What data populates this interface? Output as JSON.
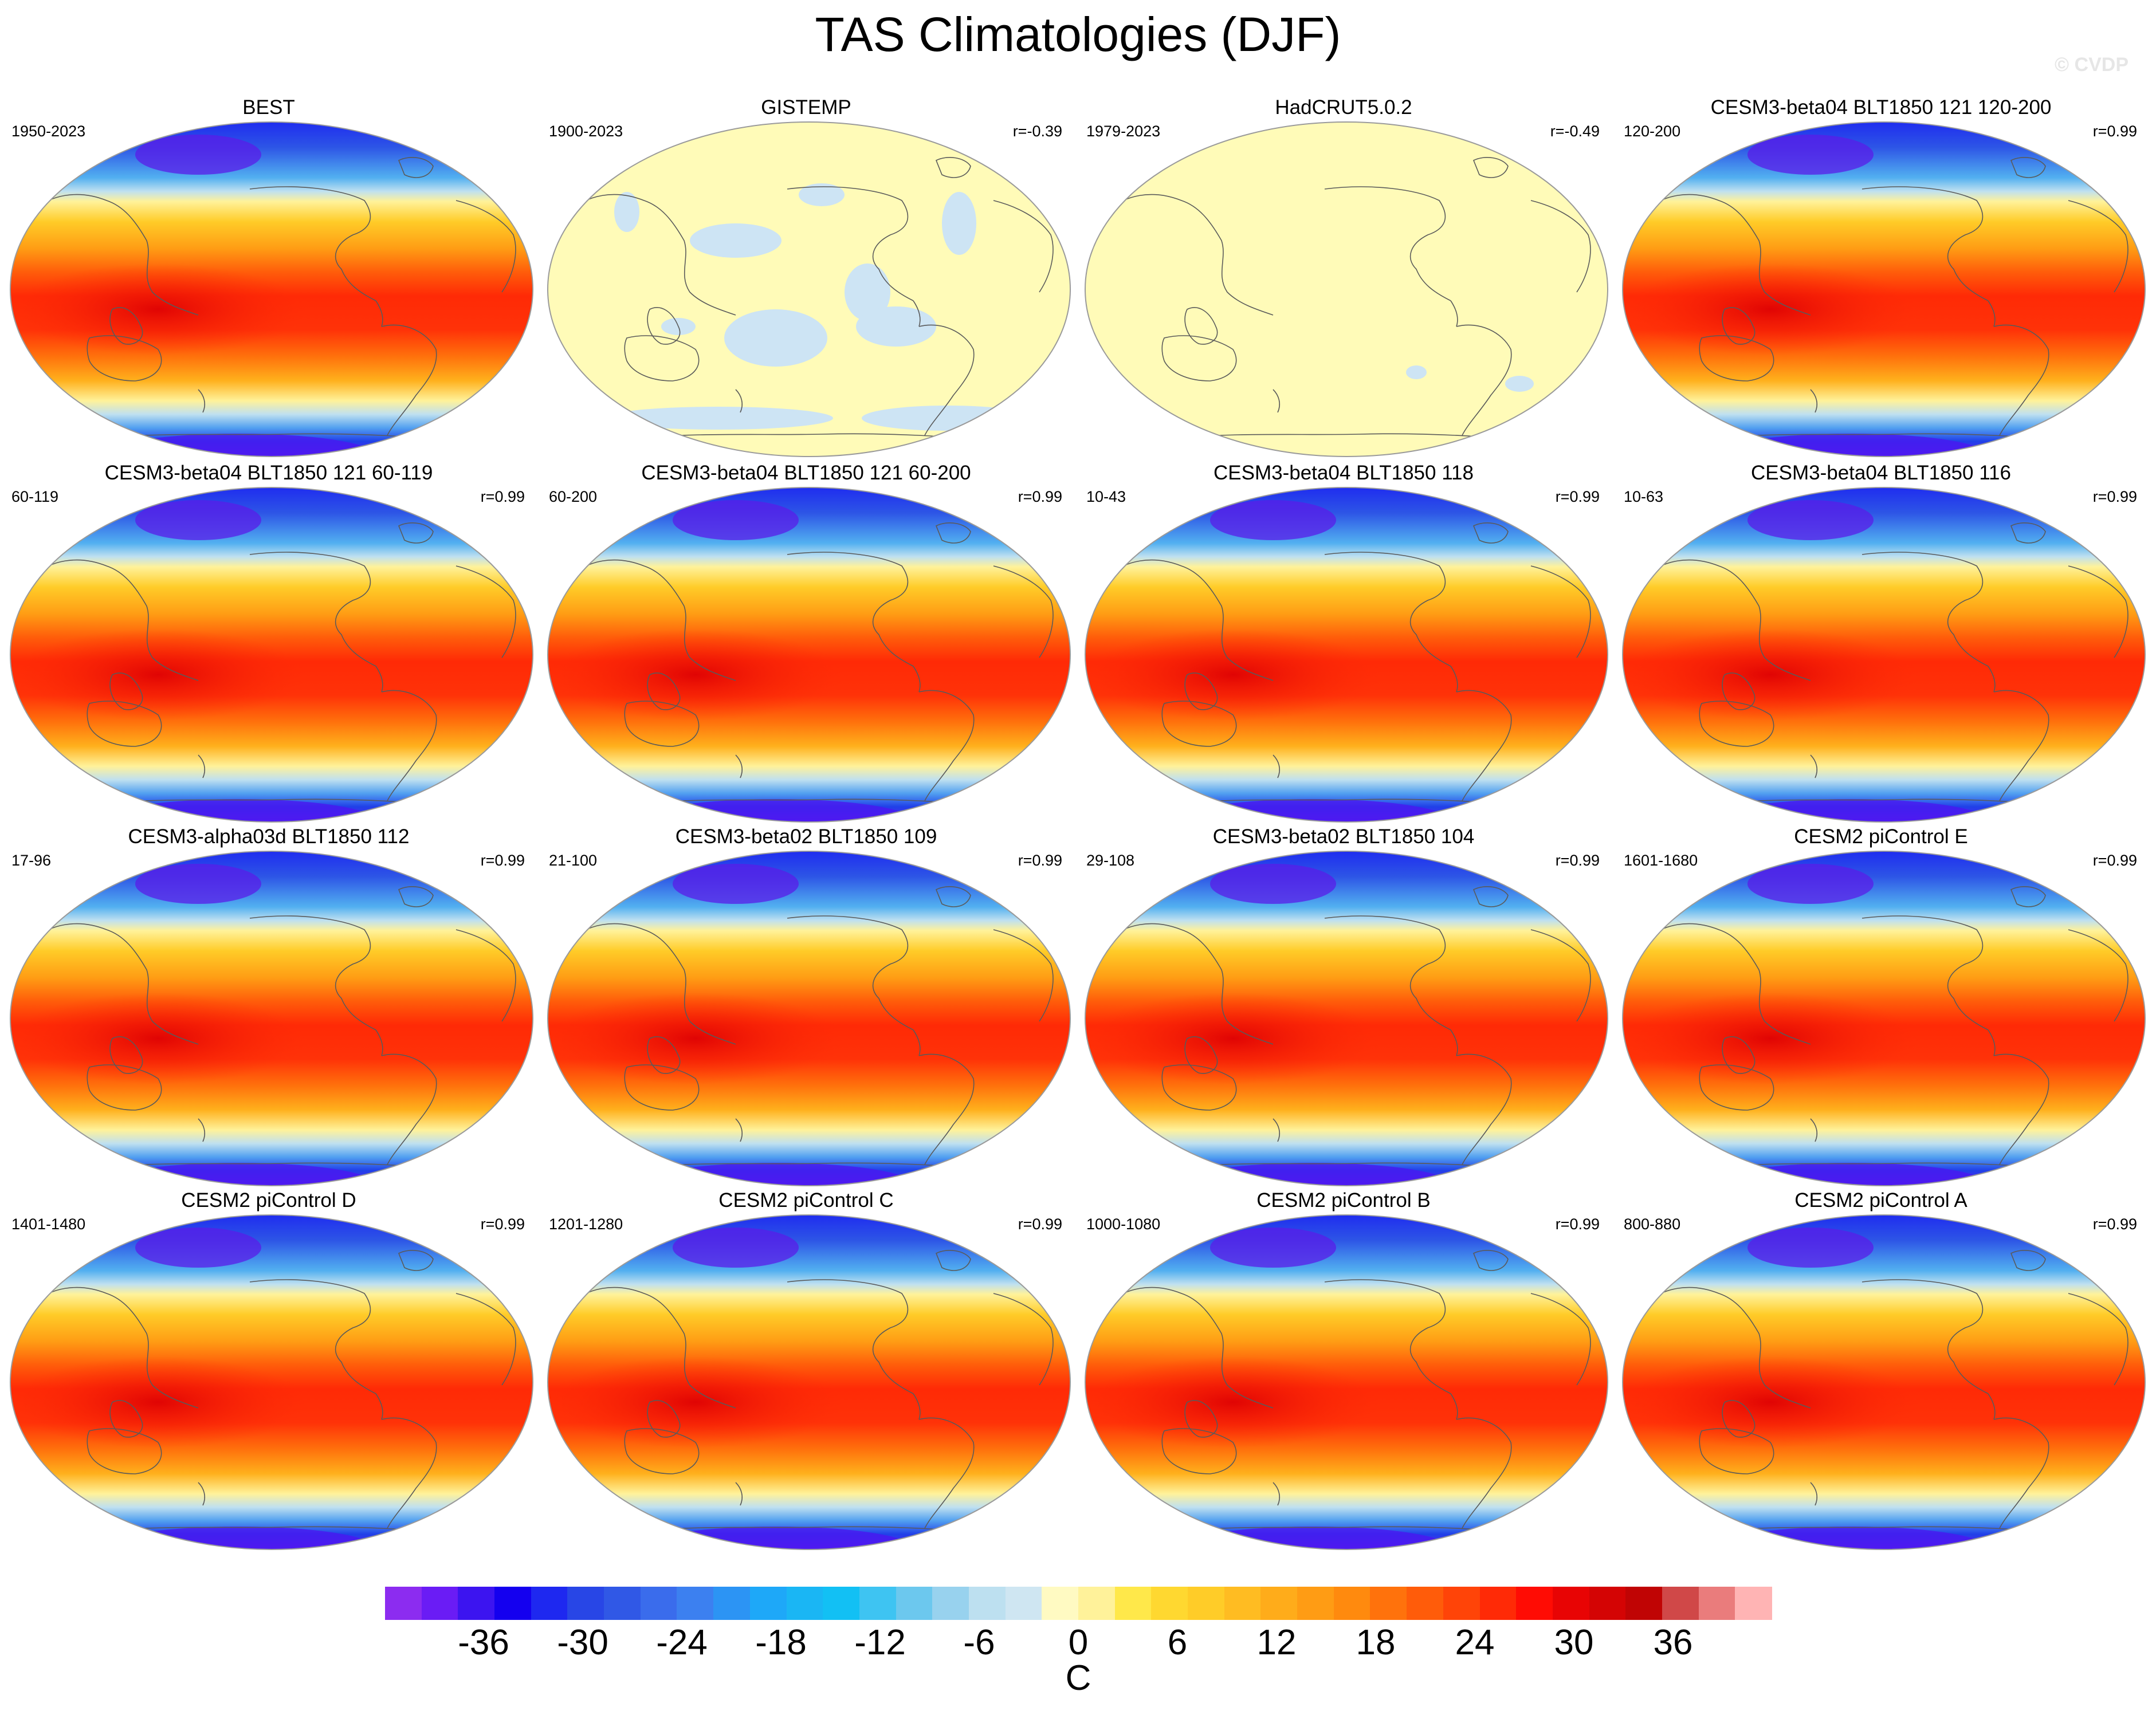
{
  "title": "TAS Climatologies (DJF)",
  "watermark": "© CVDP",
  "colorbar": {
    "ticks": [
      "-36",
      "-30",
      "-24",
      "-18",
      "-12",
      "-6",
      "0",
      "6",
      "12",
      "18",
      "24",
      "30",
      "36"
    ],
    "unit": "C",
    "colors": [
      "#8c2cf0",
      "#6a1cf5",
      "#3c14f0",
      "#1400ef",
      "#1e28f0",
      "#2846e6",
      "#3058e6",
      "#3a6cec",
      "#3c80f0",
      "#2c94f4",
      "#1ea8f8",
      "#1ab6f4",
      "#12c0f4",
      "#3ec4f2",
      "#6cc8ee",
      "#98d2ee",
      "#bde0f0",
      "#cfe6f2",
      "#fffac2",
      "#fff29a",
      "#ffe84a",
      "#ffd830",
      "#ffcc28",
      "#ffbc22",
      "#ffac1a",
      "#ff9c14",
      "#ff8a0e",
      "#ff720c",
      "#ff5c0a",
      "#ff4408",
      "#ff2a06",
      "#ff0c04",
      "#e80404",
      "#d40404",
      "#c00404",
      "#d04848",
      "#ea7c7c",
      "#ffb4b4"
    ]
  },
  "panels": [
    {
      "title": "BEST",
      "years": "1950-2023",
      "corr": "",
      "variant": "obs"
    },
    {
      "title": "GISTEMP",
      "years": "1900-2023",
      "corr": "r=-0.39",
      "variant": "gis"
    },
    {
      "title": "HadCRUT5.0.2",
      "years": "1979-2023",
      "corr": "r=-0.49",
      "variant": "had"
    },
    {
      "title": "CESM3-beta04 BLT1850 121 120-200",
      "years": "120-200",
      "corr": "r=0.99",
      "variant": "model"
    },
    {
      "title": "CESM3-beta04 BLT1850 121 60-119",
      "years": "60-119",
      "corr": "r=0.99",
      "variant": "model"
    },
    {
      "title": "CESM3-beta04 BLT1850 121 60-200",
      "years": "60-200",
      "corr": "r=0.99",
      "variant": "model"
    },
    {
      "title": "CESM3-beta04 BLT1850 118",
      "years": "10-43",
      "corr": "r=0.99",
      "variant": "model"
    },
    {
      "title": "CESM3-beta04 BLT1850 116",
      "years": "10-63",
      "corr": "r=0.99",
      "variant": "model"
    },
    {
      "title": "CESM3-alpha03d BLT1850 112",
      "years": "17-96",
      "corr": "r=0.99",
      "variant": "model"
    },
    {
      "title": "CESM3-beta02 BLT1850 109",
      "years": "21-100",
      "corr": "r=0.99",
      "variant": "model"
    },
    {
      "title": "CESM3-beta02 BLT1850 104",
      "years": "29-108",
      "corr": "r=0.99",
      "variant": "model"
    },
    {
      "title": "CESM2 piControl E",
      "years": "1601-1680",
      "corr": "r=0.99",
      "variant": "model"
    },
    {
      "title": "CESM2 piControl D",
      "years": "1401-1480",
      "corr": "r=0.99",
      "variant": "model"
    },
    {
      "title": "CESM2 piControl C",
      "years": "1201-1280",
      "corr": "r=0.99",
      "variant": "model"
    },
    {
      "title": "CESM2 piControl B",
      "years": "1000-1080",
      "corr": "r=0.99",
      "variant": "model"
    },
    {
      "title": "CESM2 piControl A",
      "years": "800-880",
      "corr": "r=0.99",
      "variant": "model"
    }
  ]
}
